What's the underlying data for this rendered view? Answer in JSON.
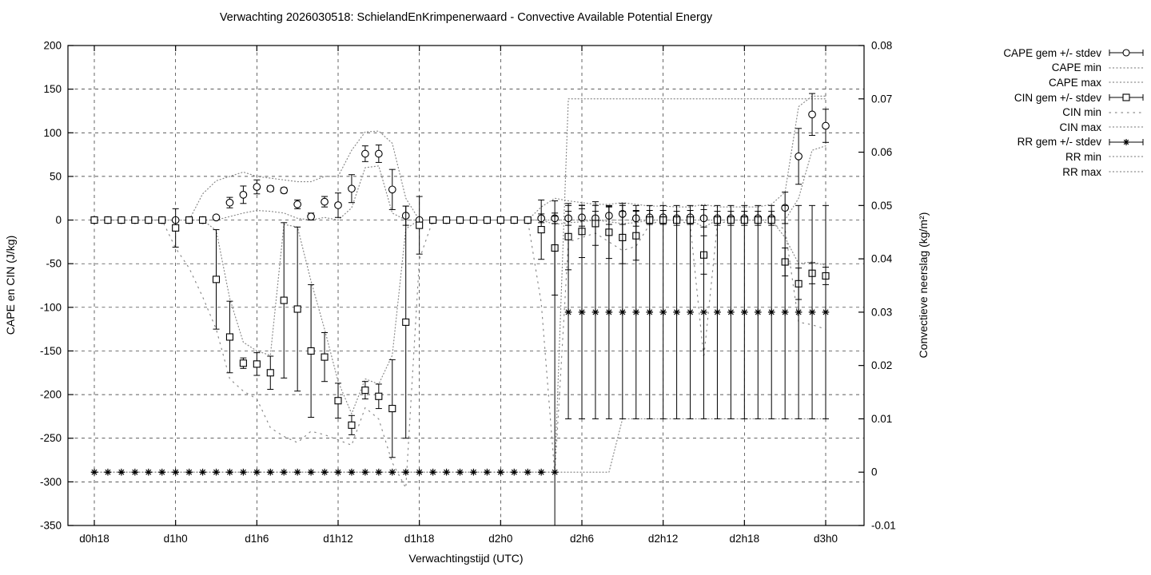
{
  "title": "Verwachting 2026030518: SchielandEnKrimpenerwaard - Convective Available Potential Energy",
  "chart_data": {
    "type": "line",
    "title": "Verwachting 2026030518: SchielandEnKrimpenerwaard - Convective Available Potential Energy",
    "grid": true,
    "legend_position": "outside-top-right",
    "x_axis": {
      "label": "Verwachtingstijd (UTC)",
      "tick_labels": [
        "d0h18",
        "d1h0",
        "d1h6",
        "d1h12",
        "d1h18",
        "d2h0",
        "d2h6",
        "d2h12",
        "d2h18",
        "d3h0"
      ],
      "tick_hours": [
        0,
        6,
        12,
        18,
        24,
        30,
        36,
        42,
        48,
        54
      ],
      "points_every_hours": 1,
      "hours_min": 0,
      "hours_max": 54
    },
    "y_left": {
      "label": "CAPE en CIN (J/kg)",
      "min": -350,
      "max": 200,
      "ticks": [
        200,
        150,
        100,
        50,
        0,
        -50,
        -100,
        -150,
        -200,
        -250,
        -300,
        -350
      ]
    },
    "y_right": {
      "label": "Convectieve neerslag (kg/m²)",
      "min": -0.01,
      "max": 0.08,
      "tick_labels": [
        "0.08",
        "0.07",
        "0.06",
        "0.05",
        "0.04",
        "0.03",
        "0.02",
        "0.01",
        "0",
        "-0.01"
      ]
    },
    "legend": [
      {
        "id": "cape-gem",
        "label": "CAPE gem +/- stdev",
        "sample": "errorbar",
        "marker": "circle"
      },
      {
        "id": "cape-min",
        "label": "CAPE min",
        "sample": "dotted",
        "marker": "none"
      },
      {
        "id": "cape-max",
        "label": "CAPE max",
        "sample": "dotted",
        "marker": "none"
      },
      {
        "id": "cin-gem",
        "label": "CIN gem +/- stdev",
        "sample": "errorbar",
        "marker": "square"
      },
      {
        "id": "cin-min",
        "label": "CIN min",
        "sample": "dotted-sparse",
        "marker": "none"
      },
      {
        "id": "cin-max",
        "label": "CIN max",
        "sample": "dotted",
        "marker": "none"
      },
      {
        "id": "rr-gem",
        "label": "RR gem +/- stdev",
        "sample": "errorbar",
        "marker": "asterisk"
      },
      {
        "id": "rr-min",
        "label": "RR min",
        "sample": "dotted",
        "marker": "none"
      },
      {
        "id": "rr-max",
        "label": "RR max",
        "sample": "dotted",
        "marker": "none"
      }
    ],
    "series": {
      "cape_gem": [
        0,
        0,
        0,
        0,
        0,
        0,
        0,
        0,
        0,
        3,
        20,
        29,
        38,
        36,
        34,
        18,
        4,
        21,
        17,
        36,
        76,
        76,
        35,
        5,
        0,
        0,
        0,
        0,
        0,
        0,
        0,
        0,
        0,
        2,
        2,
        2,
        3,
        2,
        5,
        7,
        2,
        3,
        3,
        2,
        3,
        2,
        2,
        2,
        2,
        2,
        2,
        14,
        73,
        121,
        108
      ],
      "cape_stdev": [
        0,
        0,
        0,
        0,
        0,
        0,
        0,
        0,
        0,
        2,
        6,
        10,
        8,
        3,
        3,
        5,
        4,
        6,
        14,
        16,
        9,
        10,
        23,
        11,
        0,
        0,
        0,
        0,
        0,
        0,
        0,
        0,
        0,
        5,
        6,
        8,
        10,
        8,
        10,
        12,
        9,
        8,
        8,
        8,
        8,
        10,
        8,
        8,
        8,
        8,
        8,
        18,
        32,
        24,
        19
      ],
      "cape_min": [
        0,
        0,
        0,
        0,
        0,
        0,
        0,
        0,
        0,
        0,
        4,
        8,
        11,
        10,
        8,
        2,
        0,
        3,
        0,
        14,
        60,
        62,
        8,
        0,
        0,
        0,
        0,
        0,
        0,
        0,
        0,
        0,
        0,
        0,
        0,
        0,
        0,
        0,
        0,
        0,
        0,
        0,
        0,
        0,
        0,
        0,
        0,
        0,
        0,
        0,
        0,
        0,
        25,
        80,
        85
      ],
      "cape_max": [
        0,
        0,
        0,
        0,
        0,
        0,
        0,
        0,
        30,
        45,
        50,
        55,
        50,
        48,
        46,
        44,
        44,
        50,
        50,
        80,
        101,
        102,
        88,
        25,
        0,
        0,
        0,
        0,
        0,
        0,
        0,
        0,
        0,
        15,
        25,
        22,
        20,
        18,
        18,
        20,
        18,
        16,
        16,
        15,
        15,
        18,
        15,
        15,
        15,
        15,
        18,
        32,
        130,
        142,
        142
      ],
      "cin_gem": [
        0,
        0,
        0,
        0,
        0,
        0,
        -9,
        0,
        0,
        -68,
        -134,
        -164,
        -165,
        -175,
        -92,
        -102,
        -150,
        -157,
        -207,
        -235,
        -195,
        -202,
        -216,
        -117,
        -6,
        0,
        0,
        0,
        0,
        0,
        0,
        0,
        0,
        -11,
        -32,
        -19,
        -13,
        -4,
        -14,
        -20,
        -18,
        0,
        0,
        0,
        0,
        -40,
        0,
        0,
        0,
        0,
        0,
        -48,
        -73,
        -61,
        -64
      ],
      "cin_stdev": [
        0,
        0,
        0,
        0,
        0,
        0,
        22,
        0,
        0,
        57,
        41,
        6,
        13,
        19,
        89,
        94,
        76,
        28,
        20,
        11,
        10,
        14,
        56,
        133,
        33,
        0,
        0,
        0,
        0,
        0,
        0,
        0,
        0,
        34,
        54,
        38,
        30,
        25,
        30,
        30,
        28,
        0,
        0,
        0,
        0,
        22,
        0,
        0,
        0,
        0,
        0,
        16,
        18,
        12,
        10
      ],
      "cin_min": [
        0,
        0,
        0,
        0,
        0,
        0,
        -32,
        -55,
        -88,
        -125,
        -182,
        -196,
        -205,
        -238,
        -248,
        -255,
        -242,
        -246,
        -252,
        -258,
        -215,
        -228,
        -278,
        -307,
        -45,
        0,
        0,
        0,
        0,
        0,
        0,
        0,
        0,
        -95,
        -292,
        -25,
        -20,
        -15,
        -25,
        -35,
        -30,
        -5,
        0,
        0,
        -5,
        -158,
        -5,
        0,
        0,
        0,
        -5,
        -10,
        -117,
        -120,
        -125
      ],
      "cin_max": [
        0,
        0,
        0,
        0,
        0,
        0,
        0,
        0,
        0,
        -12,
        -90,
        -140,
        -150,
        -155,
        -5,
        -8,
        -70,
        -125,
        -185,
        -222,
        -182,
        -188,
        -155,
        -10,
        0,
        0,
        0,
        0,
        0,
        0,
        0,
        0,
        0,
        0,
        -5,
        -3,
        -2,
        0,
        -2,
        -4,
        -3,
        0,
        0,
        0,
        0,
        -8,
        0,
        0,
        0,
        0,
        0,
        -20,
        -50,
        -48,
        -52
      ],
      "rr_gem": [
        0,
        0,
        0,
        0,
        0,
        0,
        0,
        0,
        0,
        0,
        0,
        0,
        0,
        0,
        0,
        0,
        0,
        0,
        0,
        0,
        0,
        0,
        0,
        0,
        0,
        0,
        0,
        0,
        0,
        0,
        0,
        0,
        0,
        0,
        0,
        0.03,
        0.03,
        0.03,
        0.03,
        0.03,
        0.03,
        0.03,
        0.03,
        0.03,
        0.03,
        0.03,
        0.03,
        0.03,
        0.03,
        0.03,
        0.03,
        0.03,
        0.03,
        0.03,
        0.03
      ],
      "rr_stdev": [
        0,
        0,
        0,
        0,
        0,
        0,
        0,
        0,
        0,
        0,
        0,
        0,
        0,
        0,
        0,
        0,
        0,
        0,
        0,
        0,
        0,
        0,
        0,
        0,
        0,
        0,
        0,
        0,
        0,
        0,
        0,
        0,
        0,
        0,
        0.048,
        0.02,
        0.02,
        0.02,
        0.02,
        0.02,
        0.02,
        0.02,
        0.02,
        0.02,
        0.02,
        0.02,
        0.02,
        0.02,
        0.02,
        0.02,
        0.02,
        0.02,
        0.02,
        0.02,
        0.02
      ],
      "rr_min": [
        0,
        0,
        0,
        0,
        0,
        0,
        0,
        0,
        0,
        0,
        0,
        0,
        0,
        0,
        0,
        0,
        0,
        0,
        0,
        0,
        0,
        0,
        0,
        0,
        0,
        0,
        0,
        0,
        0,
        0,
        0,
        0,
        0,
        0,
        0,
        0,
        0,
        0,
        0,
        0.01,
        0.01,
        0.01,
        0.01,
        0.01,
        0.01,
        0.01,
        0.01,
        0.01,
        0.01,
        0.01,
        0.01,
        0.01,
        0.01,
        0.01,
        0.01
      ],
      "rr_max": [
        0,
        0,
        0,
        0,
        0,
        0,
        0,
        0,
        0,
        0,
        0,
        0,
        0,
        0,
        0,
        0,
        0,
        0,
        0,
        0,
        0,
        0,
        0,
        0,
        0,
        0,
        0,
        0,
        0,
        0,
        0,
        0,
        0,
        0,
        0,
        0.07,
        0.07,
        0.07,
        0.07,
        0.07,
        0.07,
        0.07,
        0.07,
        0.07,
        0.07,
        0.07,
        0.07,
        0.07,
        0.07,
        0.07,
        0.07,
        0.07,
        0.07,
        0.07,
        0.07
      ]
    },
    "colors": {
      "foreground": "#000000",
      "dotted": "#8a8a8a",
      "background": "#ffffff"
    }
  }
}
